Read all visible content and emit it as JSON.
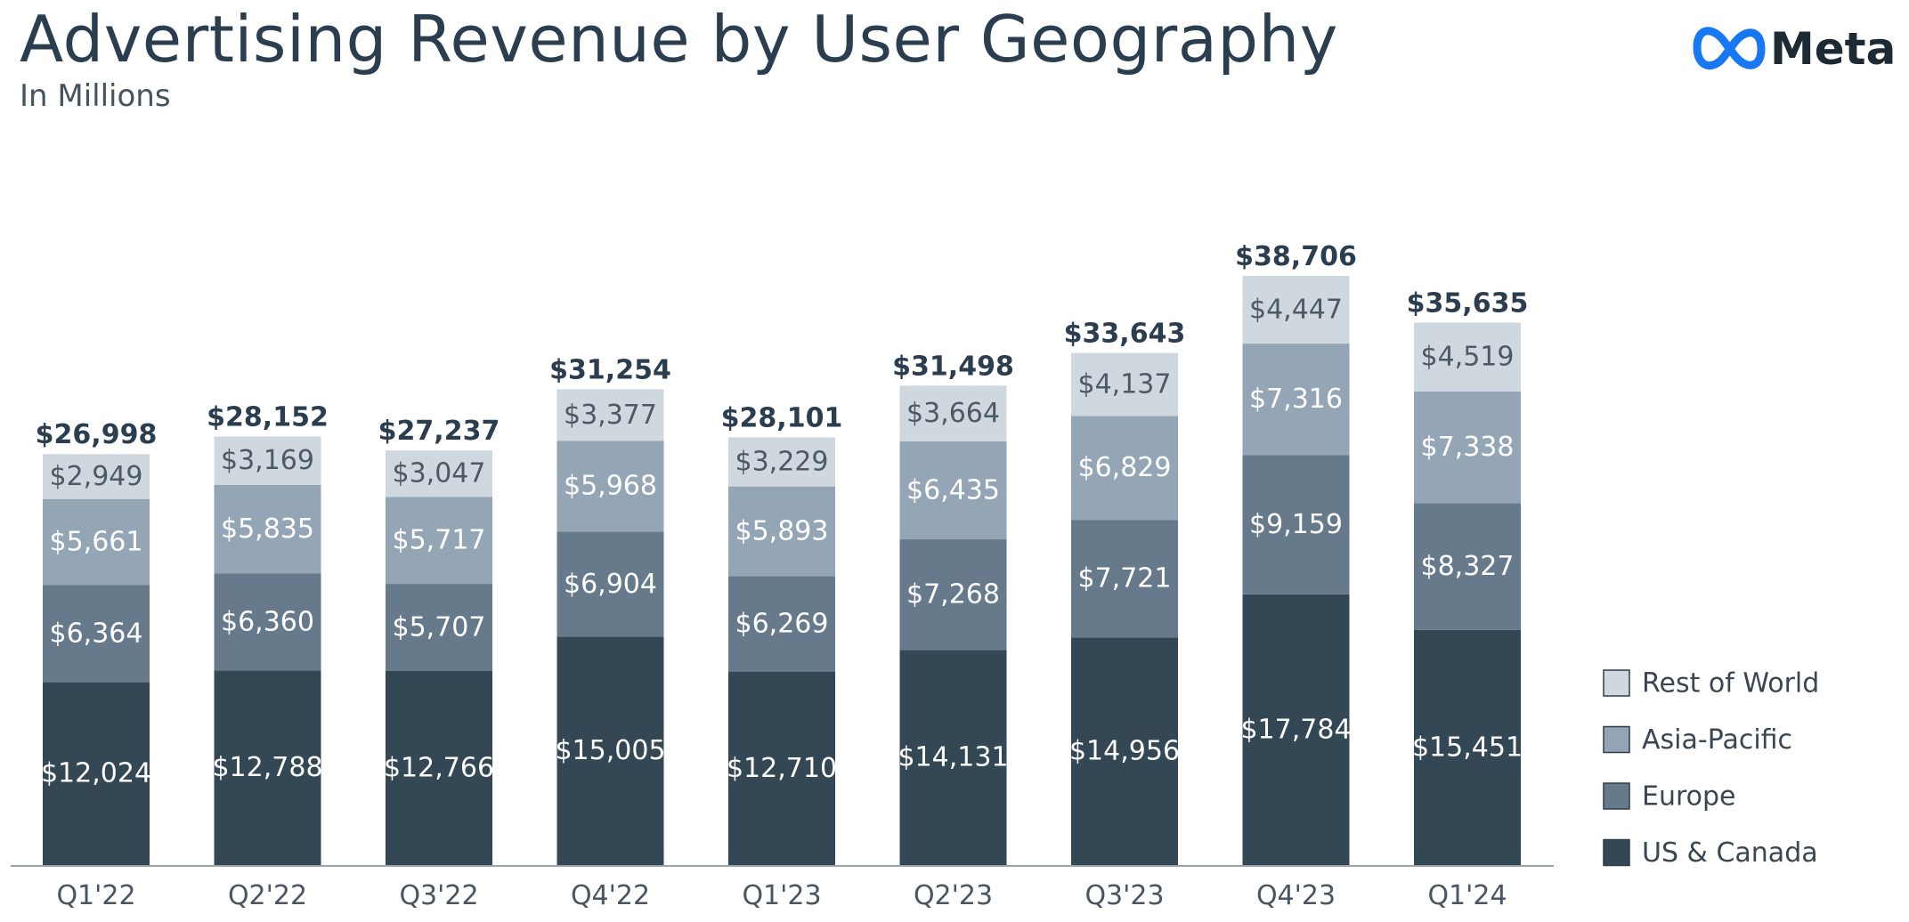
{
  "title": "Advertising Revenue by User Geography",
  "subtitle": "In Millions",
  "brand": {
    "name": "Meta",
    "icon": "meta-infinity-logo-icon",
    "icon_color": "#1877f2",
    "text_color": "#1c2b33"
  },
  "chart_data": {
    "type": "bar",
    "stacked": true,
    "categories": [
      "Q1'22",
      "Q2'22",
      "Q3'22",
      "Q4'22",
      "Q1'23",
      "Q2'23",
      "Q3'23",
      "Q4'23",
      "Q1'24"
    ],
    "series": [
      {
        "name": "US & Canada",
        "color": "#344754",
        "label_color": "#ffffff",
        "values": [
          12024,
          12788,
          12766,
          15005,
          12710,
          14131,
          14956,
          17784,
          15451
        ]
      },
      {
        "name": "Europe",
        "color": "#667a8b",
        "label_color": "#ffffff",
        "values": [
          6364,
          6360,
          5707,
          6904,
          6269,
          7268,
          7721,
          9159,
          8327
        ]
      },
      {
        "name": "Asia-Pacific",
        "color": "#94a6b5",
        "label_color": "#ffffff",
        "values": [
          5661,
          5835,
          5717,
          5968,
          5893,
          6435,
          6829,
          7316,
          7338
        ]
      },
      {
        "name": "Rest of World",
        "color": "#d0d8df",
        "label_color": "#4d5965",
        "values": [
          2949,
          3169,
          3047,
          3377,
          3229,
          3664,
          4137,
          4447,
          4519
        ]
      }
    ],
    "totals": [
      26998,
      28152,
      27237,
      31254,
      28101,
      31498,
      33643,
      38706,
      35635
    ],
    "value_prefix": "$",
    "xlabel": "",
    "ylabel": "",
    "ylim": [
      0,
      43000
    ],
    "grid": false,
    "legend": {
      "position": "right",
      "order": [
        "Rest of World",
        "Asia-Pacific",
        "Europe",
        "US & Canada"
      ]
    }
  }
}
